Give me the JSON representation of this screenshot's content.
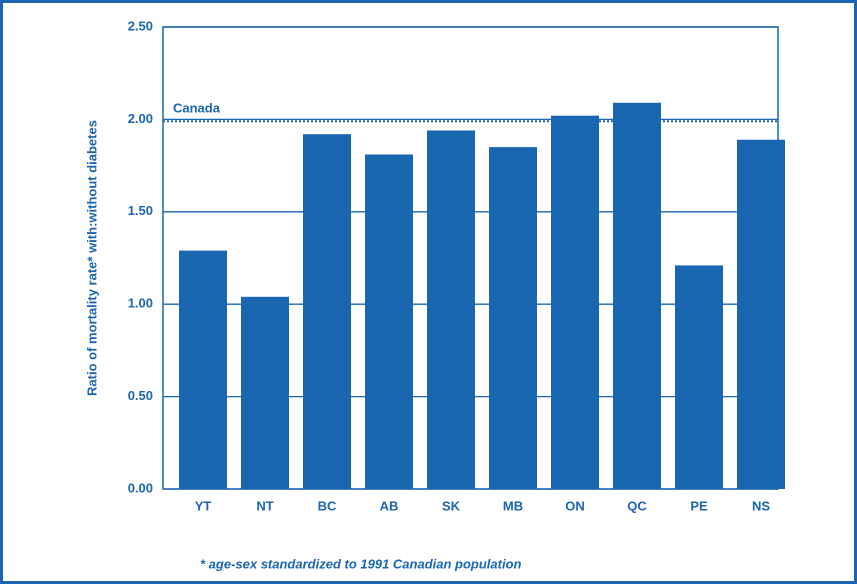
{
  "chart_data": {
    "type": "bar",
    "y_label": "Ratio of mortality rate* with:without diabetes",
    "footnote": "* age-sex standardized to 1991 Canadian population",
    "categories": [
      "YT",
      "NT",
      "BC",
      "AB",
      "SK",
      "MB",
      "ON",
      "QC",
      "PE",
      "NS"
    ],
    "values": [
      1.29,
      1.04,
      1.92,
      1.81,
      1.94,
      1.85,
      2.02,
      2.09,
      1.21,
      1.89
    ],
    "color": "#1a66b0",
    "reference": {
      "label": "Canada",
      "value": 1.99
    },
    "ylim": [
      0,
      2.5
    ],
    "yticks": [
      {
        "value": 0,
        "label": "0.00"
      },
      {
        "value": 0.5,
        "label": "0.50"
      },
      {
        "value": 1,
        "label": "1.00"
      },
      {
        "value": 1.5,
        "label": "1.50"
      },
      {
        "value": 2,
        "label": "2.00"
      },
      {
        "value": 2.5,
        "label": "2.50"
      }
    ],
    "grid": true
  }
}
